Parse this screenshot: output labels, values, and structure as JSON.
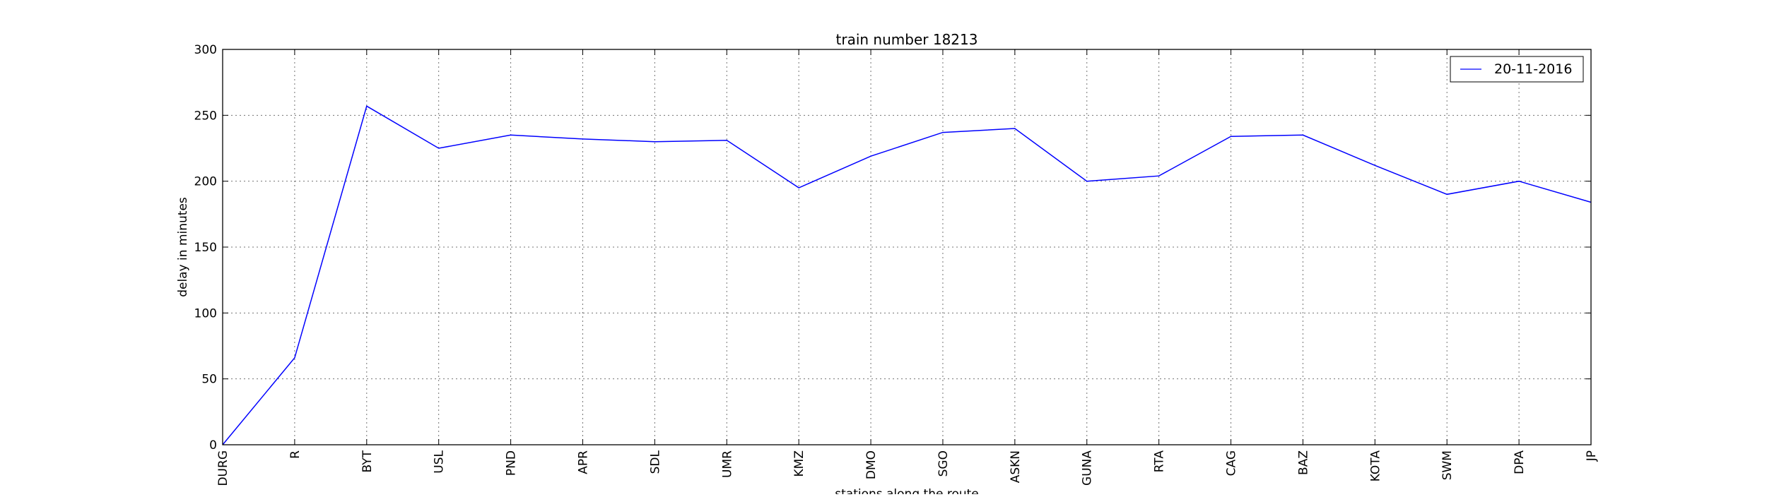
{
  "chart_data": {
    "type": "line",
    "title": "train number 18213",
    "xlabel": "stations along the route",
    "ylabel": "delay in minutes",
    "categories": [
      "DURG",
      "R",
      "BYT",
      "USL",
      "PND",
      "APR",
      "SDL",
      "UMR",
      "KMZ",
      "DMO",
      "SGO",
      "ASKN",
      "GUNA",
      "RTA",
      "CAG",
      "BAZ",
      "KOTA",
      "SWM",
      "DPA",
      "JP"
    ],
    "series": [
      {
        "name": "20-11-2016",
        "color": "#0000ff",
        "values": [
          0,
          66,
          257,
          225,
          235,
          232,
          230,
          231,
          195,
          219,
          237,
          240,
          200,
          204,
          234,
          235,
          212,
          190,
          200,
          184
        ]
      }
    ],
    "ylim": [
      0,
      300
    ],
    "yticks": [
      0,
      50,
      100,
      150,
      200,
      250,
      300
    ],
    "grid": true,
    "legend": "top-right"
  }
}
